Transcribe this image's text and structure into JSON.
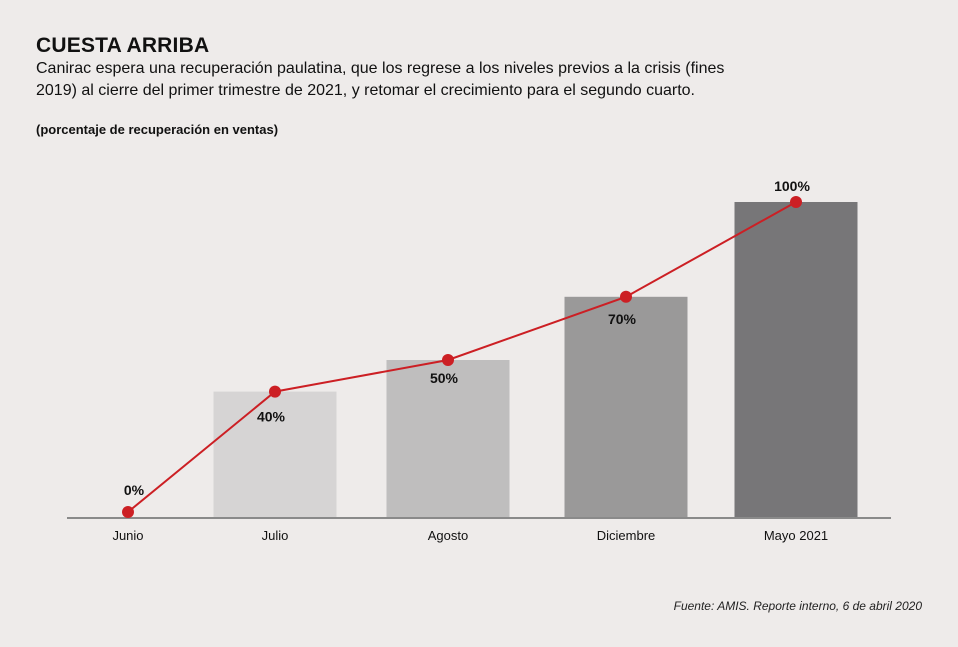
{
  "title": "CUESTA ARRIBA",
  "subtitle": "Canirac espera una recuperación paulatina, que los regrese a los niveles previos a la crisis (fines 2019) al cierre del primer trimestre de 2021, y retomar el crecimiento para el segundo cuarto.",
  "unit_note": "(porcentaje de recuperación en ventas)",
  "source": "Fuente: AMIS. Reporte interno, 6 de abril 2020",
  "chart_data": {
    "type": "bar",
    "categories": [
      "Junio",
      "Julio",
      "Agosto",
      "Diciembre",
      "Mayo 2021"
    ],
    "values": [
      0,
      40,
      50,
      70,
      100
    ],
    "value_labels": [
      "0%",
      "40%",
      "50%",
      "70%",
      "100%"
    ],
    "ylim": [
      0,
      100
    ],
    "grid": false,
    "line_overlay": true,
    "colors": {
      "bars": [
        "#d6d4d4",
        "#d6d4d4",
        "#bfbebe",
        "#9a9999",
        "#777678"
      ],
      "line": "#cc1f24",
      "axis": "#8a8a8a"
    }
  }
}
